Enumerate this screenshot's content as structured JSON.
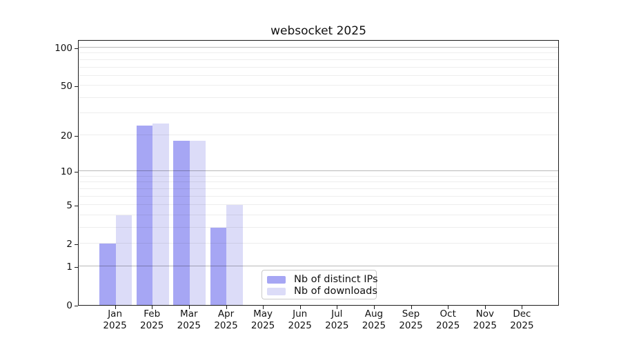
{
  "chart_data": {
    "type": "bar",
    "title": "websocket 2025",
    "categories": [
      "Jan",
      "Feb",
      "Mar",
      "Apr",
      "May",
      "Jun",
      "Jul",
      "Aug",
      "Sep",
      "Oct",
      "Nov",
      "Dec"
    ],
    "x_year": "2025",
    "series": [
      {
        "name": "Nb of distinct IPs",
        "color": "#a6a6f4",
        "values": [
          2,
          24,
          18,
          3,
          0,
          0,
          0,
          0,
          0,
          0,
          0,
          0
        ]
      },
      {
        "name": "Nb of downloads",
        "color": "#dcdcf8",
        "values": [
          4,
          25,
          18,
          5,
          0,
          0,
          0,
          0,
          0,
          0,
          0,
          0
        ]
      }
    ],
    "y_scale": "log10(1+y)",
    "ylim": [
      0,
      100
    ],
    "y_ticks": [
      0,
      1,
      2,
      5,
      10,
      20,
      50,
      100
    ],
    "y_gridlines": {
      "major": [
        1,
        10,
        100
      ],
      "minor": [
        2,
        3,
        4,
        5,
        6,
        7,
        8,
        9,
        20,
        30,
        40,
        50,
        60,
        70,
        80,
        90
      ]
    },
    "grid": true,
    "legend_position": "lower center, inside plot"
  }
}
